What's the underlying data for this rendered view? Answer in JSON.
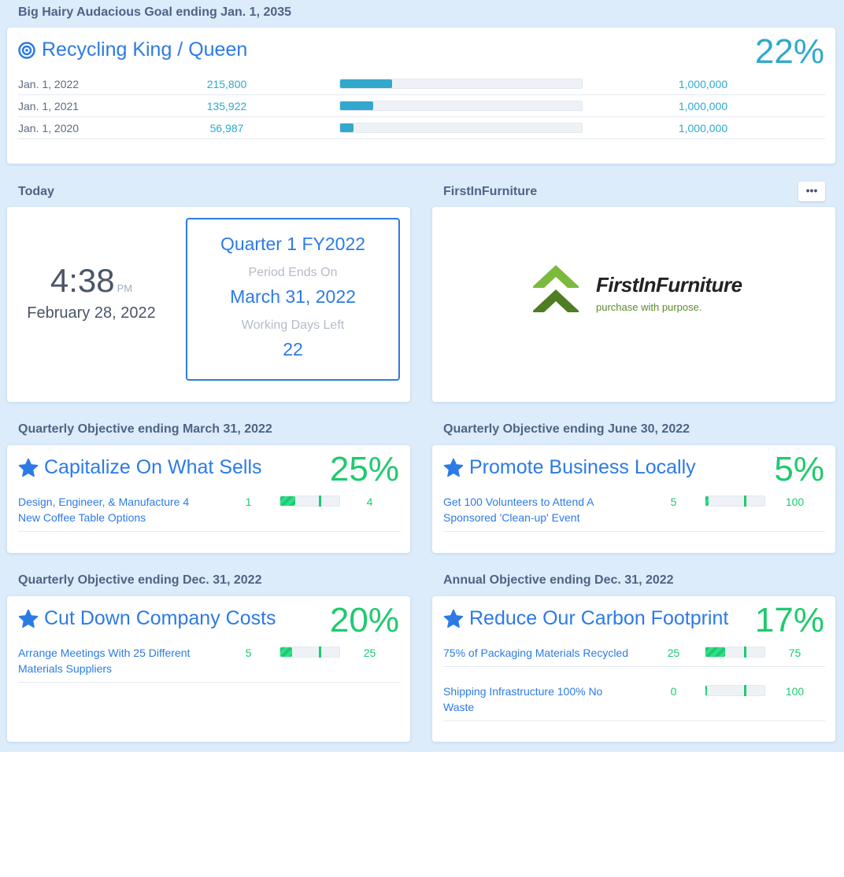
{
  "goal": {
    "section_title": "Big Hairy Audacious Goal ending Jan. 1, 2035",
    "title": "Recycling King / Queen",
    "percent": "22%",
    "rows": [
      {
        "date": "Jan. 1, 2022",
        "value": "215,800",
        "target": "1,000,000",
        "progress": 0.2158
      },
      {
        "date": "Jan. 1, 2021",
        "value": "135,922",
        "target": "1,000,000",
        "progress": 0.1359
      },
      {
        "date": "Jan. 1, 2020",
        "value": "56,987",
        "target": "1,000,000",
        "progress": 0.057
      }
    ]
  },
  "today": {
    "section_title": "Today",
    "time": "4:38",
    "ampm": "PM",
    "date": "February 28, 2022",
    "quarter": "Quarter 1 FY2022",
    "period_label": "Period Ends On",
    "period_end": "March 31, 2022",
    "days_label": "Working Days Left",
    "days_left": "22"
  },
  "company": {
    "section_title": "FirstInFurniture",
    "menu_label": "•••",
    "logo_name": "FirstInFurniture",
    "logo_tagline": "purchase with purpose.",
    "logo_colors": {
      "chevron_top": "#7cba3d",
      "chevron_bottom": "#4e7d23"
    }
  },
  "objectives": [
    {
      "section_title": "Quarterly Objective ending March 31, 2022",
      "title": "Capitalize On What Sells",
      "percent": "25%",
      "key_results": [
        {
          "name": "Design, Engineer, & Manufacture 4 New Coffee Table Options",
          "current": "1",
          "target": "4",
          "progress": 0.25,
          "expected": 0.67
        }
      ]
    },
    {
      "section_title": "Quarterly Objective ending June 30, 2022",
      "title": "Promote Business Locally",
      "percent": "5%",
      "key_results": [
        {
          "name": "Get 100 Volunteers to Attend A Sponsored 'Clean-up' Event",
          "current": "5",
          "target": "100",
          "progress": 0.05,
          "expected": 0.67
        }
      ]
    },
    {
      "section_title": "Quarterly Objective ending Dec. 31, 2022",
      "title": "Cut Down Company Costs",
      "percent": "20%",
      "key_results": [
        {
          "name": "Arrange Meetings With 25 Different Materials Suppliers",
          "current": "5",
          "target": "25",
          "progress": 0.2,
          "expected": 0.67
        }
      ]
    },
    {
      "section_title": "Annual Objective ending Dec. 31, 2022",
      "title": "Reduce Our Carbon Footprint",
      "percent": "17%",
      "key_results": [
        {
          "name": "75% of Packaging Materials Recycled",
          "current": "25",
          "target": "75",
          "progress": 0.333,
          "expected": 0.67
        },
        {
          "name": "Shipping Infrastructure 100% No Waste",
          "current": "0",
          "target": "100",
          "progress": 0.0,
          "expected": 0.67
        }
      ]
    }
  ],
  "colors": {
    "accent": "#2c7be5",
    "goal_teal": "#2fa9cd",
    "success_green": "#1fca6e",
    "background": "#dcecfb"
  }
}
